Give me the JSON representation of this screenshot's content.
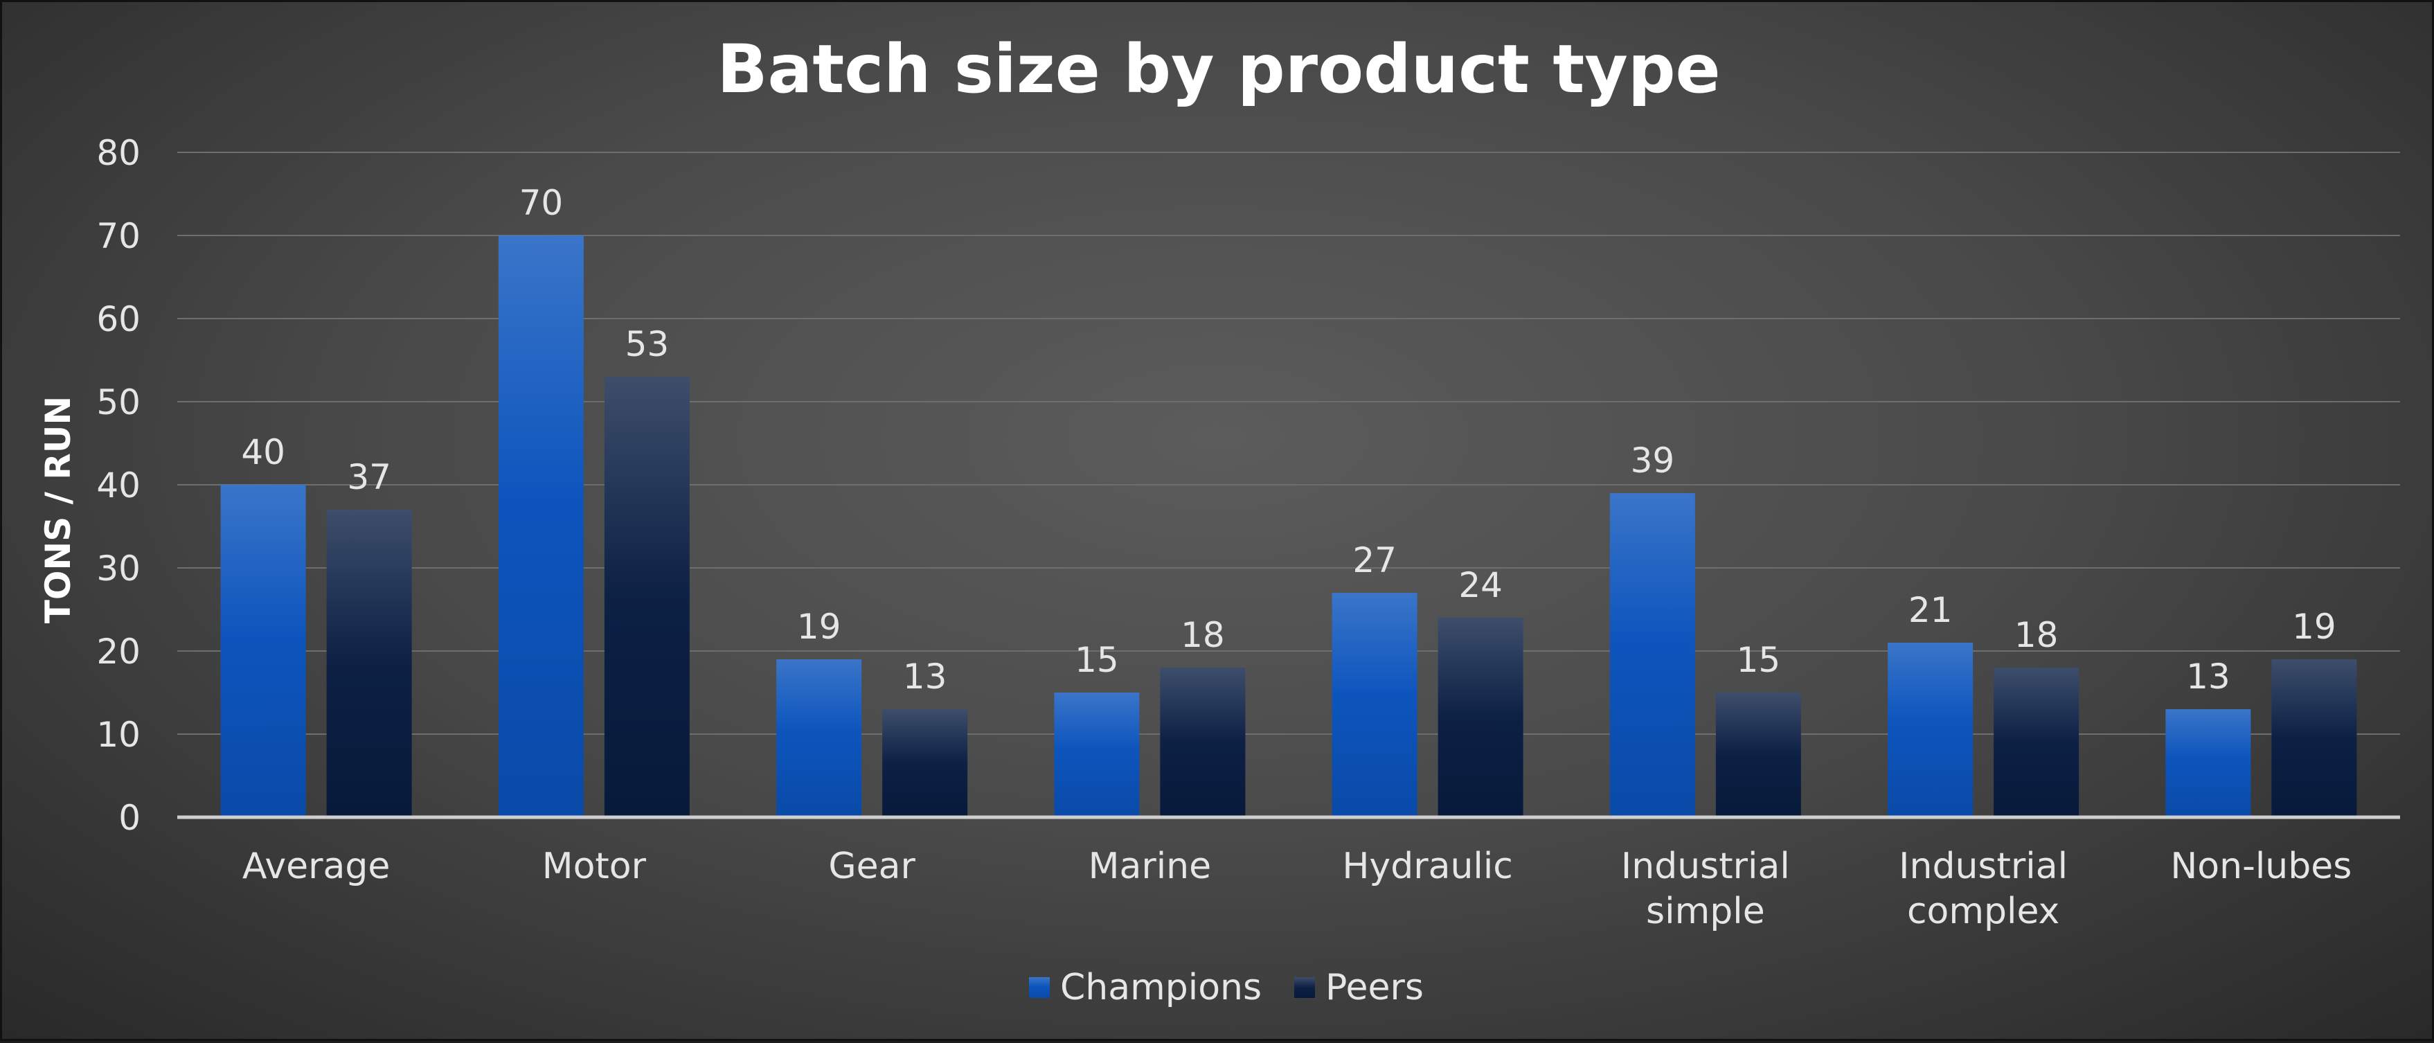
{
  "chart_data": {
    "type": "bar",
    "title": "Batch size by product type",
    "ylabel": "TONS / RUN",
    "xlabel": "",
    "ylim": [
      0,
      80
    ],
    "yticks": [
      0,
      10,
      20,
      30,
      40,
      50,
      60,
      70,
      80
    ],
    "grid": true,
    "legend_position": "bottom",
    "categories": [
      [
        "Average"
      ],
      [
        "Motor"
      ],
      [
        "Gear"
      ],
      [
        "Marine"
      ],
      [
        "Hydraulic"
      ],
      [
        "Industrial",
        "simple"
      ],
      [
        "Industrial",
        "complex"
      ],
      [
        "Non-lubes"
      ]
    ],
    "series": [
      {
        "name": "Champions",
        "color": "#1f5fc4",
        "values": [
          40,
          70,
          19,
          15,
          27,
          39,
          21,
          13
        ]
      },
      {
        "name": "Peers",
        "color": "#0d1f3f",
        "values": [
          37,
          53,
          13,
          18,
          24,
          15,
          18,
          19
        ]
      }
    ]
  }
}
